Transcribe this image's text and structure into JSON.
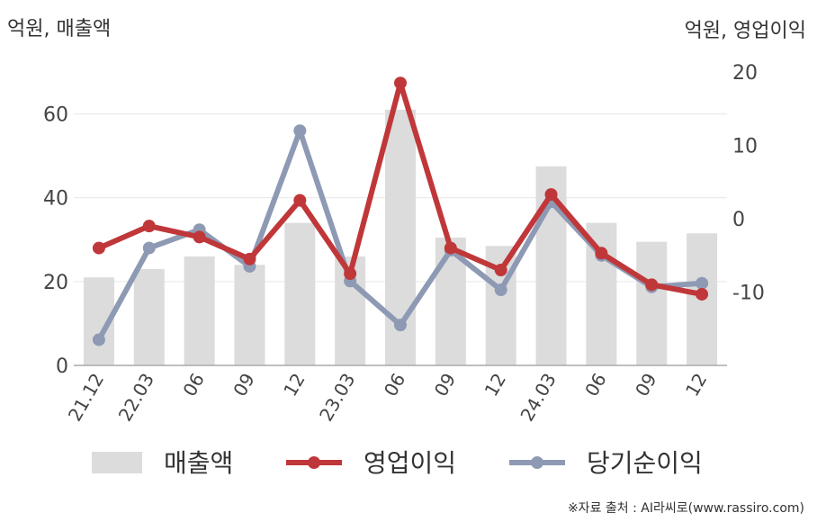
{
  "units": {
    "left": "억원, 매출액",
    "right": "억원, 영업이익"
  },
  "source": "※자료 출처 : AI라씨로(www.rassiro.com)",
  "chart_data": {
    "type": "bar+line",
    "categories": [
      "21.12",
      "22.03",
      "06",
      "09",
      "12",
      "23.03",
      "06",
      "09",
      "12",
      "24.03",
      "06",
      "09",
      "12"
    ],
    "left_axis": {
      "ylim": [
        0,
        70
      ],
      "ticks": [
        0,
        20,
        40,
        60
      ]
    },
    "right_axis": {
      "ylim": [
        -20,
        20
      ],
      "ticks": [
        -10,
        0,
        10,
        20
      ]
    },
    "series": [
      {
        "name": "매출액",
        "kind": "bar",
        "axis": "left",
        "color": "#dcdcdc",
        "values": [
          21,
          23,
          26,
          24,
          34,
          26,
          61,
          30.5,
          28.5,
          47.5,
          34,
          29.5,
          31.5
        ]
      },
      {
        "name": "영업이익",
        "kind": "line",
        "axis": "right",
        "color": "#c0373a",
        "values": [
          -4,
          -1,
          -2.5,
          -5.5,
          2.5,
          -7.5,
          18.5,
          -4,
          -7,
          3.3,
          -4.7,
          -9,
          -10.3
        ]
      },
      {
        "name": "당기순이익",
        "kind": "line",
        "axis": "right",
        "color": "#8e9ab4",
        "values": [
          -16.5,
          -4,
          -1.5,
          -6.5,
          12,
          -8.5,
          -14.5,
          -4.3,
          -9.7,
          2.3,
          -5,
          -9.3,
          -8.8
        ]
      }
    ],
    "legend_position": "bottom",
    "grid": true
  }
}
